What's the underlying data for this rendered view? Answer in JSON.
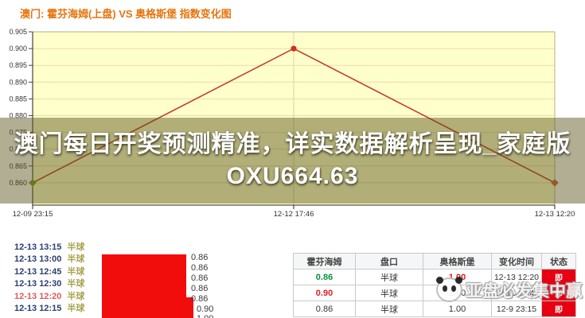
{
  "colors": {
    "title_orange": "#E7730B",
    "status_red": "#E60012",
    "block_red": "#F20D0D",
    "time_navy": "#2A3F6F",
    "time_red": "#E05A5A",
    "handicap_olive": "#A8A24E"
  },
  "chart": {
    "title": "澳门: 霍芬海姆(上盘) VS 奥格斯堡 指数变化图",
    "overlay_headline": "澳门每日开奖预测精准，详实数据解析呈现_家庭版OXU664.63"
  },
  "chart_data": {
    "type": "line",
    "title": "澳门: 霍芬海姆(上盘) VS 奥格斯堡 指数变化图",
    "x": [
      "12-09 23:15",
      "12-12 17:46",
      "12-13 12:20"
    ],
    "values": [
      0.86,
      0.9,
      0.86
    ],
    "ylim": [
      0.86,
      0.905
    ],
    "ytick_step": 0.005,
    "grid": true,
    "legend": false,
    "bg_color": "#FFFFCC",
    "line_color": "#C23B2A",
    "marker_colors": [
      "#6FA41E",
      "#D03020",
      "#C9662B"
    ],
    "marker_shapes": [
      "diamond",
      "circle",
      "diamond"
    ]
  },
  "odds_list": {
    "rows": [
      {
        "time": "12-13 13:15",
        "handicap": "半球",
        "highlight": false
      },
      {
        "time": "12-13 13:00",
        "handicap": "半球",
        "highlight": false
      },
      {
        "time": "12-13 12:45",
        "handicap": "半球",
        "highlight": false
      },
      {
        "time": "12-13 12:30",
        "handicap": "半球",
        "highlight": false
      },
      {
        "time": "12-13 12:20",
        "handicap": "半球",
        "highlight": true
      },
      {
        "time": "12-13 12:15",
        "handicap": "半球",
        "highlight": false
      }
    ],
    "values": [
      {
        "value": "0.86",
        "indent": 0
      },
      {
        "value": "0.86",
        "indent": 0
      },
      {
        "value": "0.86",
        "indent": 0
      },
      {
        "value": "0.86",
        "indent": 0
      },
      {
        "value": "0.86",
        "indent": 0
      },
      {
        "value": "0.90",
        "indent": 7
      },
      {
        "value": "1.00",
        "indent": 7
      }
    ]
  },
  "odds_table": {
    "headers": [
      "霍芬海姆",
      "盘口",
      "奥格斯堡",
      "变化时间",
      "状态"
    ],
    "rows": [
      {
        "home": "0.86",
        "home_color": "green",
        "handicap": "半球",
        "away": "1.00",
        "away_color": "red",
        "time": "12-13 12:20",
        "status": "即"
      },
      {
        "home": "0.90",
        "home_color": "red",
        "handicap": "半球",
        "away": "1.00",
        "away_color": "dark",
        "time": "12-12 17:46",
        "status": "即"
      },
      {
        "home": "0.86",
        "home_color": "dark",
        "handicap": "半球",
        "away": "1.00",
        "away_color": "dark",
        "time": "12-9 23:15",
        "status": "即"
      }
    ]
  },
  "watermark": {
    "text": "亚盘必发集中赢"
  }
}
